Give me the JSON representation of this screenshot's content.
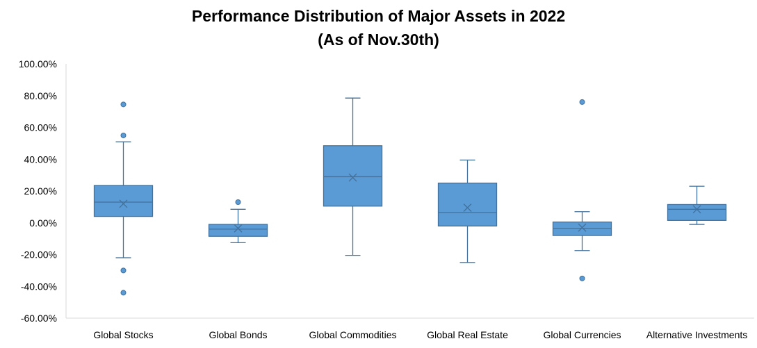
{
  "chart_data": {
    "type": "boxplot",
    "title": "Performance Distribution of Major Assets in 2022",
    "subtitle": "(As of Nov.30th)",
    "xlabel": "",
    "ylabel": "",
    "ylim": [
      -60,
      100
    ],
    "yticks": [
      100,
      80,
      60,
      40,
      20,
      0,
      -20,
      -40,
      -60
    ],
    "ytick_labels": [
      "100.00%",
      "80.00%",
      "60.00%",
      "40.00%",
      "20.00%",
      "0.00%",
      "-20.00%",
      "-40.00%",
      "-60.00%"
    ],
    "categories": [
      "Global Stocks",
      "Global Bonds",
      "Global Commodities",
      "Global Real Estate",
      "Global Currencies",
      "Alternative Investments"
    ],
    "boxes": [
      {
        "name": "Global Stocks",
        "whisker_low": -22,
        "q1": 4,
        "median": 13,
        "q3": 23.5,
        "whisker_high": 51,
        "mean": 12,
        "outliers": [
          74.5,
          55,
          -30,
          -44
        ]
      },
      {
        "name": "Global Bonds",
        "whisker_low": -12.5,
        "q1": -8.5,
        "median": -4,
        "q3": -1,
        "whisker_high": 8.5,
        "mean": -3.5,
        "outliers": [
          13
        ]
      },
      {
        "name": "Global Commodities",
        "whisker_low": -20.5,
        "q1": 10.5,
        "median": 29,
        "q3": 48.5,
        "whisker_high": 78.5,
        "mean": 28.5,
        "outliers": []
      },
      {
        "name": "Global Real Estate",
        "whisker_low": -25,
        "q1": -2,
        "median": 6.5,
        "q3": 25,
        "whisker_high": 39.5,
        "mean": 9.5,
        "outliers": []
      },
      {
        "name": "Global Currencies",
        "whisker_low": -17.5,
        "q1": -8,
        "median": -3.5,
        "q3": 0.5,
        "whisker_high": 7,
        "mean": -3,
        "outliers": [
          76,
          -35
        ]
      },
      {
        "name": "Alternative Investments",
        "whisker_low": -1,
        "q1": 1.5,
        "median": 8.5,
        "q3": 11.5,
        "whisker_high": 23,
        "mean": 8.5,
        "outliers": []
      }
    ],
    "colors": {
      "box_fill": "#5b9bd5",
      "box_stroke": "#41719c",
      "axis": "#d9d9d9"
    }
  }
}
